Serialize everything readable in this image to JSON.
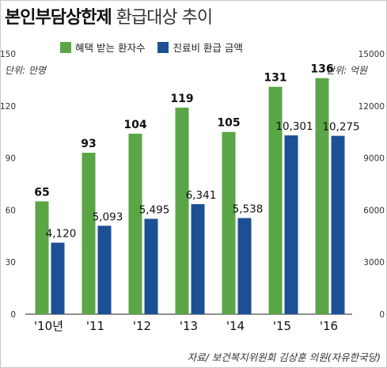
{
  "title": {
    "bold": "본인부담상한제",
    "light": "환급대상 추이"
  },
  "units": {
    "left": "단위: 만명",
    "right": "단위: 억원"
  },
  "source": "자료/ 보건복지위원회 김상훈 의원(자유한국당)",
  "chart_data": {
    "type": "bar",
    "categories": [
      "'10년",
      "'11",
      "'12",
      "'13",
      "'14",
      "'15",
      "'16"
    ],
    "series": [
      {
        "name": "혜택 받는 환자수",
        "axis": "left",
        "color": "#5aa646",
        "values": [
          65,
          93,
          104,
          119,
          105,
          131,
          136
        ],
        "labels": [
          "65",
          "93",
          "104",
          "119",
          "105",
          "131",
          "136"
        ]
      },
      {
        "name": "진료비 환급 금액",
        "axis": "right",
        "color": "#1c4f94",
        "values": [
          4120,
          5093,
          5495,
          6341,
          5538,
          10301,
          10275
        ],
        "labels": [
          "4,120",
          "5,093",
          "5,495",
          "6,341",
          "5,538",
          "10,301",
          "10,275"
        ]
      }
    ],
    "left_axis": {
      "ylim": [
        0,
        150
      ],
      "ticks": [
        "0",
        "30",
        "60",
        "90",
        "120",
        "150"
      ]
    },
    "right_axis": {
      "ylim": [
        0,
        15000
      ],
      "ticks": [
        "0",
        "3000",
        "6000",
        "9000",
        "12000",
        "15000"
      ]
    },
    "grid": false,
    "legend": "top"
  }
}
